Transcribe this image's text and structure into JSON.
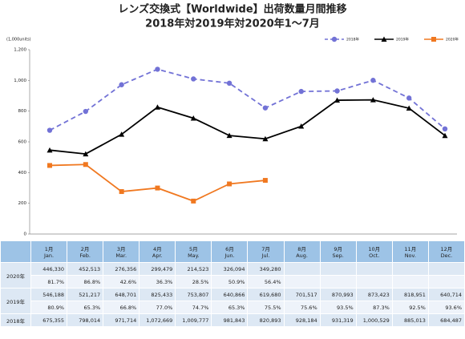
{
  "chart_data": {
    "type": "line",
    "title": "レンズ交換式【Worldwide】出荷数量月間推移",
    "subtitle": "2018年対2019年対2020年1～7月",
    "y_label": "(1,000units)",
    "ylim": [
      0,
      1200
    ],
    "yticks": [
      0,
      200,
      400,
      600,
      800,
      {
        "value": 1000,
        "label": "1,000"
      },
      {
        "value": 1200,
        "label": "1,200"
      }
    ],
    "grid": false,
    "legend": "top-right",
    "series": [
      {
        "name": "2018年",
        "color": "#7272d6",
        "dashed": true,
        "marker": "circle",
        "values": [
          675.355,
          798.014,
          971.714,
          1072.669,
          1009.777,
          981.843,
          820.893,
          928.184,
          931.319,
          1000.529,
          885.013,
          684.487
        ]
      },
      {
        "name": "2019年",
        "color": "#000000",
        "dashed": false,
        "marker": "triangle",
        "values": [
          546.188,
          521.217,
          648.701,
          825.433,
          753.807,
          640.866,
          619.68,
          701.517,
          870.993,
          873.423,
          818.951,
          640.714
        ]
      },
      {
        "name": "2020年",
        "color": "#f07820",
        "dashed": false,
        "marker": "square",
        "values": [
          446.33,
          452.513,
          276.356,
          299.479,
          214.523,
          326.094,
          349.28,
          null,
          null,
          null,
          null,
          null
        ]
      }
    ]
  },
  "table": {
    "header": [
      {
        "ja": "1月",
        "en": "Jan."
      },
      {
        "ja": "2月",
        "en": "Feb."
      },
      {
        "ja": "3月",
        "en": "Mar."
      },
      {
        "ja": "4月",
        "en": "Apr."
      },
      {
        "ja": "5月",
        "en": "May."
      },
      {
        "ja": "6月",
        "en": "Jun."
      },
      {
        "ja": "7月",
        "en": "Jul."
      },
      {
        "ja": "8月",
        "en": "Aug."
      },
      {
        "ja": "9月",
        "en": "Sep."
      },
      {
        "ja": "10月",
        "en": "Oct."
      },
      {
        "ja": "11月",
        "en": "Nov."
      },
      {
        "ja": "12月",
        "en": "Dec."
      }
    ],
    "rows": [
      {
        "label": "2020年",
        "values": [
          "446,330",
          "452,513",
          "276,356",
          "299,479",
          "214,523",
          "326,094",
          "349,280"
        ],
        "shares": [
          "81.7%",
          "86.8%",
          "42.6%",
          "36.3%",
          "28.5%",
          "50.9%",
          "56.4%"
        ]
      },
      {
        "label": "2019年",
        "values": [
          "546,188",
          "521,217",
          "648,701",
          "825,433",
          "753,807",
          "640,866",
          "619,680",
          "701,517",
          "870,993",
          "873,423",
          "818,951",
          "640,714"
        ],
        "shares": [
          "80.9%",
          "65.3%",
          "66.8%",
          "77.0%",
          "74.7%",
          "65.3%",
          "75.5%",
          "75.6%",
          "93.5%",
          "87.3%",
          "92.5%",
          "93.6%"
        ]
      },
      {
        "label": "2018年",
        "values": [
          "675,355",
          "798,014",
          "971,714",
          "1,072,669",
          "1,009,777",
          "981,843",
          "820,893",
          "928,184",
          "931,319",
          "1,000,529",
          "885,013",
          "684,487"
        ]
      }
    ]
  }
}
